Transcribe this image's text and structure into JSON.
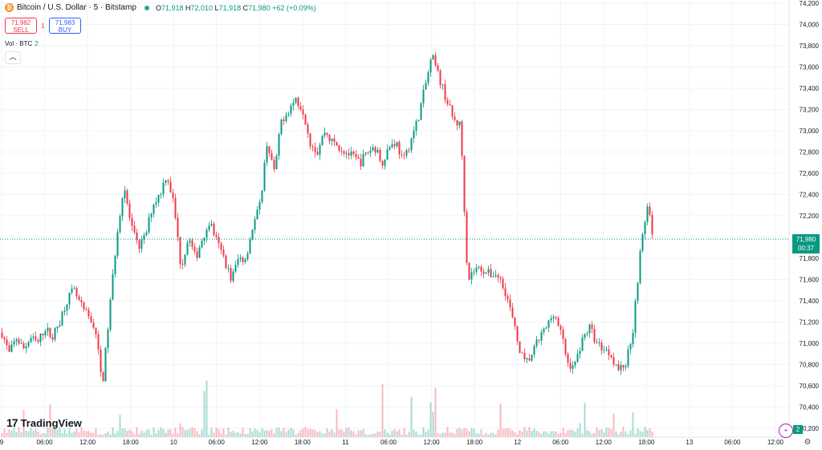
{
  "header": {
    "symbol": "Bitcoin / U.S. Dollar · 5 · Bitstamp",
    "open_label": "O",
    "open": "71,918",
    "high_label": "H",
    "high": "72,010",
    "low_label": "L",
    "low": "71,918",
    "close_label": "C",
    "close": "71,980",
    "change": "+62 (+0.09%)"
  },
  "trade": {
    "sell_price": "71,982",
    "sell_label": "SELL",
    "spread": "1",
    "buy_price": "71,983",
    "buy_label": "BUY"
  },
  "volume_legend": {
    "label": "Vol · BTC",
    "value": "2"
  },
  "price_label": {
    "price": "71,980",
    "countdown": "00:37"
  },
  "volume_badge": "2",
  "logo": {
    "mark": "17",
    "text": "TradingView"
  },
  "icons": {
    "gear": "gear-icon",
    "collapse": "chevron-up-icon",
    "alert": "add-alert-icon"
  },
  "colors": {
    "up": "#089981",
    "down": "#f23645",
    "accent": "#2962ff",
    "alert": "#9c27b0"
  },
  "chart_data": {
    "type": "candlestick",
    "title": "Bitcoin / U.S. Dollar · 5 · Bitstamp",
    "ylim": [
      70200,
      74200
    ],
    "y_ticks": [
      70200,
      70400,
      70600,
      70800,
      71000,
      71200,
      71400,
      71600,
      71800,
      72000,
      72200,
      72400,
      72600,
      72800,
      73000,
      73200,
      73400,
      73600,
      73800,
      74000,
      74200
    ],
    "y_tick_labels": [
      "70,200",
      "70,400",
      "70,600",
      "70,800",
      "71,000",
      "71,200",
      "71,400",
      "71,600",
      "71,800",
      "72,000",
      "72,200",
      "72,400",
      "72,600",
      "72,800",
      "73,000",
      "73,200",
      "73,400",
      "73,600",
      "73,800",
      "74,000",
      "74,200"
    ],
    "x_tick_labels": [
      "9",
      "06:00",
      "12:00",
      "18:00",
      "10",
      "06:00",
      "12:00",
      "18:00",
      "11",
      "06:00",
      "12:00",
      "18:00",
      "12",
      "06:00",
      "12:00",
      "18:00",
      "13",
      "06:00",
      "12:00"
    ],
    "x_tick_hours": [
      0,
      6,
      12,
      18,
      24,
      30,
      36,
      42,
      48,
      54,
      60,
      66,
      72,
      78,
      84,
      90,
      96,
      102,
      108
    ],
    "last_price": 71980,
    "price_path": [
      [
        0,
        71100
      ],
      [
        1,
        70900
      ],
      [
        2,
        71050
      ],
      [
        3,
        70950
      ],
      [
        4,
        71050
      ],
      [
        5,
        71000
      ],
      [
        6,
        71150
      ],
      [
        7,
        71050
      ],
      [
        8,
        71200
      ],
      [
        9,
        71400
      ],
      [
        10,
        71500
      ],
      [
        11,
        71350
      ],
      [
        12,
        71250
      ],
      [
        13,
        71150
      ],
      [
        14,
        70600
      ],
      [
        15,
        71300
      ],
      [
        16,
        72000
      ],
      [
        17,
        72500
      ],
      [
        18,
        72100
      ],
      [
        19,
        71900
      ],
      [
        20,
        72000
      ],
      [
        21,
        72300
      ],
      [
        22,
        72400
      ],
      [
        23,
        72600
      ],
      [
        24,
        72300
      ],
      [
        25,
        71700
      ],
      [
        26,
        72000
      ],
      [
        27,
        71800
      ],
      [
        28,
        72000
      ],
      [
        29,
        72150
      ],
      [
        30,
        71950
      ],
      [
        31,
        71800
      ],
      [
        32,
        71600
      ],
      [
        33,
        71800
      ],
      [
        34,
        71800
      ],
      [
        35,
        72100
      ],
      [
        36,
        72300
      ],
      [
        37,
        72900
      ],
      [
        38,
        72600
      ],
      [
        39,
        73100
      ],
      [
        40,
        73200
      ],
      [
        41,
        73300
      ],
      [
        42,
        73200
      ],
      [
        43,
        72900
      ],
      [
        44,
        72800
      ],
      [
        45,
        73000
      ],
      [
        46,
        72900
      ],
      [
        47,
        72850
      ],
      [
        48,
        72800
      ],
      [
        49,
        72750
      ],
      [
        50,
        72700
      ],
      [
        51,
        72800
      ],
      [
        52,
        72850
      ],
      [
        53,
        72700
      ],
      [
        54,
        72850
      ],
      [
        55,
        72900
      ],
      [
        56,
        72700
      ],
      [
        57,
        72900
      ],
      [
        58,
        73100
      ],
      [
        59,
        73400
      ],
      [
        60,
        73700
      ],
      [
        61,
        73500
      ],
      [
        62,
        73300
      ],
      [
        63,
        73100
      ],
      [
        64,
        73050
      ],
      [
        65,
        71600
      ],
      [
        66,
        71700
      ],
      [
        67,
        71700
      ],
      [
        68,
        71650
      ],
      [
        69,
        71650
      ],
      [
        70,
        71550
      ],
      [
        71,
        71300
      ],
      [
        72,
        71000
      ],
      [
        73,
        70800
      ],
      [
        74,
        70900
      ],
      [
        75,
        71050
      ],
      [
        76,
        71150
      ],
      [
        77,
        71300
      ],
      [
        78,
        71100
      ],
      [
        79,
        70800
      ],
      [
        80,
        70800
      ],
      [
        81,
        71050
      ],
      [
        82,
        71150
      ],
      [
        83,
        71000
      ],
      [
        84,
        70950
      ],
      [
        85,
        70900
      ],
      [
        86,
        70750
      ],
      [
        87,
        70800
      ],
      [
        88,
        71100
      ],
      [
        89,
        71800
      ],
      [
        90,
        72300
      ],
      [
        91,
        71980
      ]
    ],
    "volume_axis_label": "Vol · BTC"
  }
}
